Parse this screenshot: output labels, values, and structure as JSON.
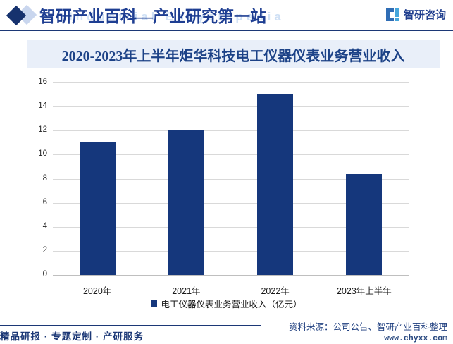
{
  "header": {
    "site_title": "智研产业百科—产业研究第一站",
    "watermark": "Industrial Encyclopedia",
    "brand": "智研咨询"
  },
  "chart_data": {
    "type": "bar",
    "title": "2020-2023年上半年炬华科技电工仪器仪表业务营业收入",
    "categories": [
      "2020年",
      "2021年",
      "2022年",
      "2023年上半年"
    ],
    "values": [
      11,
      12.1,
      15,
      8.4
    ],
    "legend": "电工仪器仪表业务营业收入（亿元）",
    "xlabel": "",
    "ylabel": "",
    "ylim": [
      0,
      16
    ],
    "ytick_step": 2,
    "grid": true,
    "legend_position": "bottom",
    "bar_color": "#15377c"
  },
  "footer": {
    "tagline": "精品研报 · 专题定制 · 产研服务",
    "source": "资料来源：公司公告、智研产业百科整理",
    "website": "www.chyxx.com"
  },
  "colors": {
    "accent": "#1c3876",
    "title_band_bg": "#e9eff9",
    "gridline": "#d9d9d9",
    "zero_line": "#bfbfbf"
  }
}
